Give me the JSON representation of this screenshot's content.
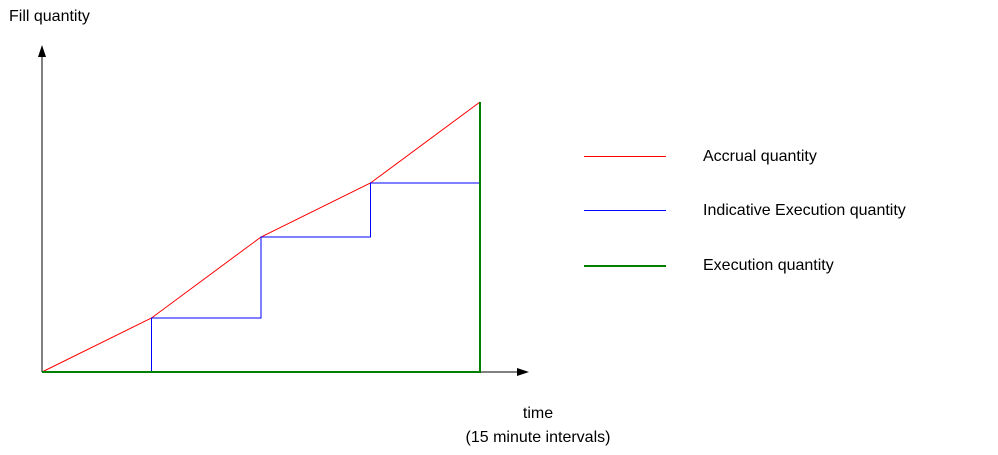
{
  "chart_data": {
    "type": "line",
    "title": "",
    "ylabel": "Fill quantity",
    "xlabel": "time",
    "xlabel_note": "(15 minute intervals)",
    "x": [
      0,
      1,
      2,
      3,
      4
    ],
    "xlim": [
      0,
      4.4
    ],
    "ylim": [
      0,
      5
    ],
    "grid": false,
    "legend_placement": "right",
    "series": [
      {
        "name": "Accrual quantity",
        "color": "#ff0000",
        "points": [
          [
            0,
            0
          ],
          [
            1,
            1
          ],
          [
            2,
            2.5
          ],
          [
            3,
            3.5
          ],
          [
            4,
            5
          ]
        ]
      },
      {
        "name": "Indicative Execution quantity",
        "color": "#0000ff",
        "points": [
          [
            0,
            0
          ],
          [
            1,
            0
          ],
          [
            1,
            1
          ],
          [
            2,
            1
          ],
          [
            2,
            2.5
          ],
          [
            3,
            2.5
          ],
          [
            3,
            3.5
          ],
          [
            4,
            3.5
          ],
          [
            4,
            5
          ]
        ]
      },
      {
        "name": "Execution quantity",
        "color": "#008000",
        "points": [
          [
            0,
            0
          ],
          [
            4,
            0
          ],
          [
            4,
            5
          ]
        ]
      }
    ]
  }
}
